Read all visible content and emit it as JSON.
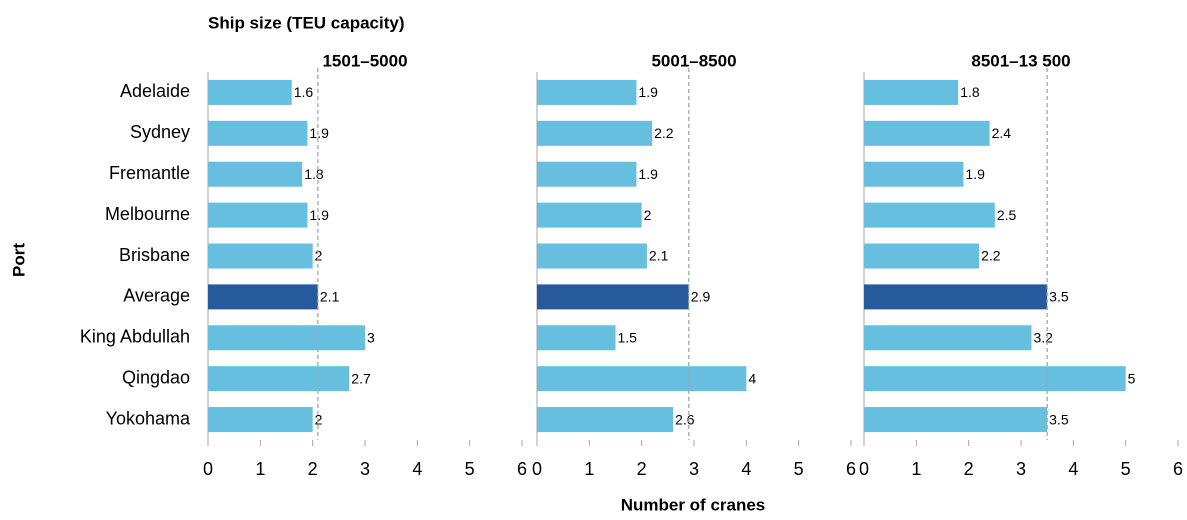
{
  "chart_data": {
    "type": "bar",
    "orientation": "horizontal",
    "title": "Ship size (TEU capacity)",
    "ylabel": "Port",
    "xlabel": "Number of cranes",
    "categories": [
      "Adelaide",
      "Sydney",
      "Fremantle",
      "Melbourne",
      "Brisbane",
      "Average",
      "King Abdullah",
      "Qingdao",
      "Yokohama"
    ],
    "colors": [
      "#66bfdf",
      "#66bfdf",
      "#66bfdf",
      "#66bfdf",
      "#66bfdf",
      "#265a9c",
      "#66bfdf",
      "#66bfdf",
      "#66bfdf"
    ],
    "xlim": [
      0,
      6
    ],
    "xticks": [
      0,
      1,
      2,
      3,
      4,
      5,
      6
    ],
    "reference_line_color": "#a6a6a6",
    "panels": [
      {
        "title": "1501–5000",
        "values": [
          1.6,
          1.9,
          1.8,
          1.9,
          2,
          2.1,
          3,
          2.7,
          2
        ],
        "reference_line": 2.1
      },
      {
        "title": "5001–8500",
        "values": [
          1.9,
          2.2,
          1.9,
          2,
          2.1,
          2.9,
          1.5,
          4,
          2.6
        ],
        "reference_line": 2.9
      },
      {
        "title": "8501–13 500",
        "values": [
          1.8,
          2.4,
          1.9,
          2.5,
          2.2,
          3.5,
          3.2,
          5,
          3.5
        ],
        "reference_line": 3.5
      }
    ]
  }
}
